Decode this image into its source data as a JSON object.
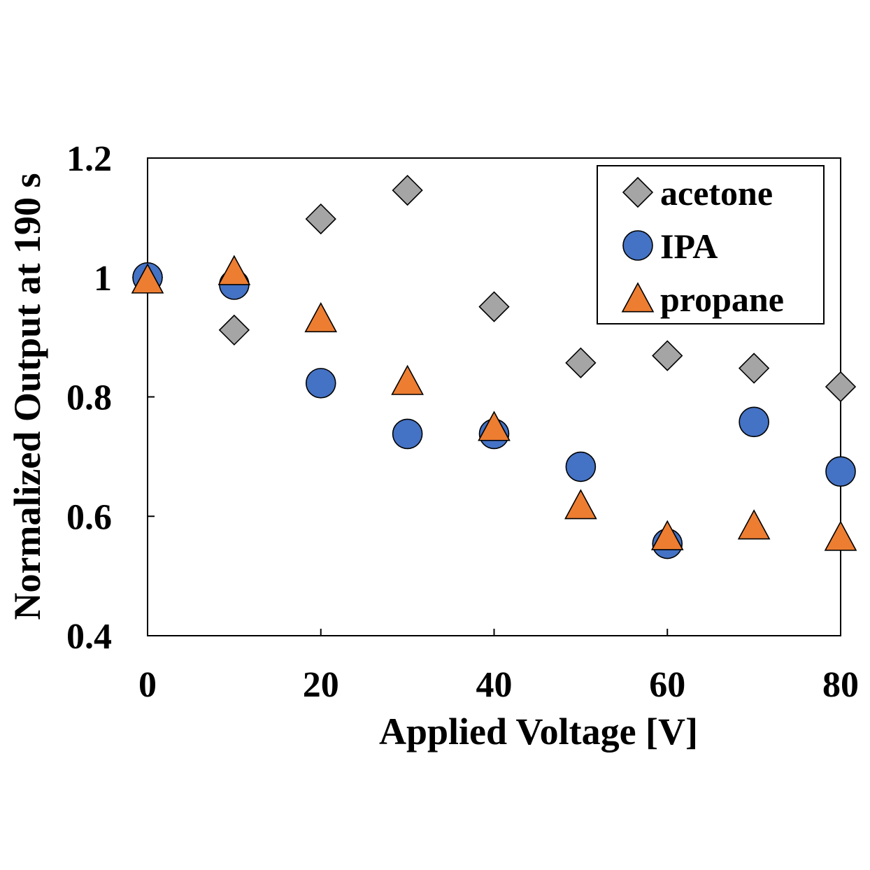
{
  "chart_data": {
    "type": "scatter",
    "title": "",
    "xlabel": "Applied Voltage [V]",
    "ylabel": "Normalized Output at 190 s",
    "xlim": [
      0,
      80
    ],
    "ylim": [
      0.4,
      1.2
    ],
    "xticks": [
      0,
      20,
      40,
      60,
      80
    ],
    "xtick_labels": [
      "0",
      "20",
      "40",
      "60",
      "80"
    ],
    "yticks": [
      0.4,
      0.6,
      0.8,
      1.0,
      1.2
    ],
    "ytick_labels": [
      "0.4",
      "0.6",
      "0.8",
      "1",
      "1.2"
    ],
    "grid": false,
    "legend_position": "top-right",
    "series": [
      {
        "name": "acetone",
        "marker": "diamond",
        "color": "#a5a5a5",
        "x": [
          0,
          10,
          20,
          30,
          40,
          50,
          60,
          70,
          80
        ],
        "y": [
          1.0,
          0.912,
          1.098,
          1.146,
          0.951,
          0.857,
          0.869,
          0.848,
          0.817
        ]
      },
      {
        "name": "IPA",
        "marker": "circle",
        "color": "#4472c4",
        "x": [
          0,
          10,
          20,
          30,
          40,
          50,
          60,
          70,
          80
        ],
        "y": [
          1.0,
          0.988,
          0.823,
          0.738,
          0.738,
          0.683,
          0.554,
          0.758,
          0.675
        ]
      },
      {
        "name": "propane",
        "marker": "triangle",
        "color": "#ed7d31",
        "x": [
          0,
          10,
          20,
          30,
          40,
          50,
          60,
          70,
          80
        ],
        "y": [
          0.996,
          1.01,
          0.931,
          0.826,
          0.749,
          0.618,
          0.566,
          0.584,
          0.565
        ]
      }
    ]
  }
}
